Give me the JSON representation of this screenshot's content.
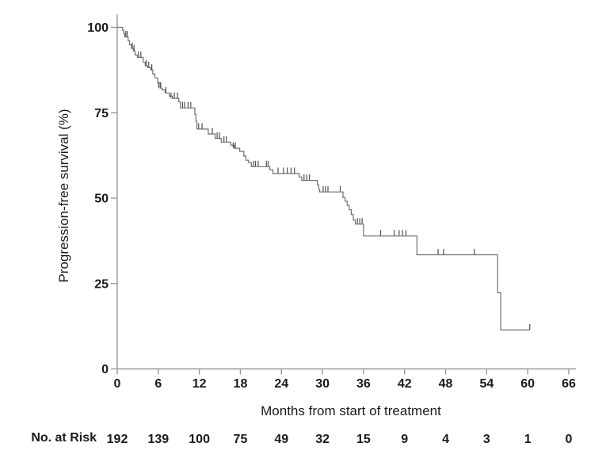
{
  "chart_data": {
    "type": "line",
    "subtype": "kaplan-meier-step-curve",
    "title": "",
    "xlabel": "Months from start of treatment",
    "ylabel": "Progression-free survival (%)",
    "x_ticks": [
      0,
      6,
      12,
      18,
      24,
      30,
      36,
      42,
      48,
      54,
      60,
      66
    ],
    "y_ticks": [
      0,
      25,
      50,
      75,
      100
    ],
    "xlim": [
      0,
      66
    ],
    "ylim": [
      0,
      100
    ],
    "grid": false,
    "legend": null,
    "colors": {
      "curve": "#6f6f6f",
      "censor": "#4f4f4f",
      "axis": "#9a9a9a",
      "text": "#1a1a1a"
    },
    "steps": [
      [
        0,
        100
      ],
      [
        0.8,
        99.1
      ],
      [
        0.95,
        98.1
      ],
      [
        1.1,
        97.2
      ],
      [
        1.6,
        96.1
      ],
      [
        1.8,
        94.9
      ],
      [
        2.1,
        93.8
      ],
      [
        2.35,
        93.1
      ],
      [
        2.6,
        91.9
      ],
      [
        2.95,
        91.2
      ],
      [
        3.8,
        89.8
      ],
      [
        4.1,
        88.7
      ],
      [
        4.45,
        88.2
      ],
      [
        4.9,
        87.5
      ],
      [
        5.2,
        86.3
      ],
      [
        5.5,
        85.2
      ],
      [
        5.9,
        83.8
      ],
      [
        6.25,
        82.2
      ],
      [
        6.55,
        81.7
      ],
      [
        7.0,
        80.8
      ],
      [
        7.6,
        79.9
      ],
      [
        8.05,
        79.2
      ],
      [
        9.0,
        78.2
      ],
      [
        9.25,
        76.4
      ],
      [
        11.35,
        74.5
      ],
      [
        11.5,
        72.5
      ],
      [
        11.65,
        70.2
      ],
      [
        13.3,
        68.8
      ],
      [
        14.3,
        67.5
      ],
      [
        15.2,
        66.4
      ],
      [
        16.6,
        65.5
      ],
      [
        17.1,
        64.6
      ],
      [
        17.9,
        63.7
      ],
      [
        18.5,
        62.3
      ],
      [
        18.8,
        61.1
      ],
      [
        19.2,
        60.4
      ],
      [
        19.6,
        59.2
      ],
      [
        22.3,
        58.3
      ],
      [
        22.75,
        57.2
      ],
      [
        26.6,
        56.2
      ],
      [
        26.95,
        55.2
      ],
      [
        29.25,
        53.9
      ],
      [
        29.45,
        52.6
      ],
      [
        29.6,
        51.8
      ],
      [
        33.0,
        50.2
      ],
      [
        33.3,
        49.1
      ],
      [
        33.6,
        47.9
      ],
      [
        33.9,
        46.6
      ],
      [
        34.2,
        45.2
      ],
      [
        34.5,
        43.6
      ],
      [
        34.8,
        42.4
      ],
      [
        36.0,
        38.9
      ],
      [
        43.8,
        33.4
      ],
      [
        55.6,
        22.3
      ],
      [
        56.05,
        11.4
      ]
    ],
    "curve_end_month": 60.3,
    "censor_marks": [
      [
        1.25,
        97.2
      ],
      [
        1.45,
        97.2
      ],
      [
        2.2,
        93.8
      ],
      [
        2.45,
        93.1
      ],
      [
        3.1,
        91.2
      ],
      [
        3.45,
        91.2
      ],
      [
        4.25,
        88.7
      ],
      [
        4.6,
        88.2
      ],
      [
        5.05,
        87.5
      ],
      [
        6.05,
        82.2
      ],
      [
        6.35,
        82.2
      ],
      [
        7.1,
        80.8
      ],
      [
        7.85,
        79.2
      ],
      [
        8.35,
        79.2
      ],
      [
        8.8,
        79.2
      ],
      [
        9.55,
        76.4
      ],
      [
        9.85,
        76.4
      ],
      [
        10.35,
        76.4
      ],
      [
        10.75,
        76.4
      ],
      [
        11.9,
        70.2
      ],
      [
        12.4,
        70.2
      ],
      [
        13.9,
        68.8
      ],
      [
        14.6,
        67.5
      ],
      [
        14.95,
        67.5
      ],
      [
        15.6,
        66.4
      ],
      [
        15.95,
        66.4
      ],
      [
        16.95,
        64.6
      ],
      [
        17.25,
        64.6
      ],
      [
        19.9,
        59.2
      ],
      [
        20.2,
        59.2
      ],
      [
        20.6,
        59.2
      ],
      [
        21.8,
        59.2
      ],
      [
        22.05,
        59.2
      ],
      [
        23.5,
        57.2
      ],
      [
        24.3,
        57.2
      ],
      [
        24.85,
        57.2
      ],
      [
        25.4,
        57.2
      ],
      [
        25.9,
        57.2
      ],
      [
        27.3,
        55.2
      ],
      [
        27.7,
        55.2
      ],
      [
        28.1,
        55.2
      ],
      [
        30.1,
        51.8
      ],
      [
        30.45,
        51.8
      ],
      [
        30.8,
        51.8
      ],
      [
        32.6,
        51.8
      ],
      [
        35.1,
        42.4
      ],
      [
        35.45,
        42.4
      ],
      [
        35.8,
        42.4
      ],
      [
        38.5,
        38.9
      ],
      [
        40.5,
        38.9
      ],
      [
        41.2,
        38.9
      ],
      [
        41.7,
        38.9
      ],
      [
        42.2,
        38.9
      ],
      [
        46.9,
        33.4
      ],
      [
        47.7,
        33.4
      ],
      [
        52.2,
        33.4
      ],
      [
        60.3,
        11.4
      ]
    ],
    "at_risk": {
      "label": "No. at Risk",
      "times": [
        0,
        6,
        12,
        18,
        24,
        30,
        36,
        42,
        48,
        54,
        60,
        66
      ],
      "counts": [
        192,
        139,
        100,
        75,
        49,
        32,
        15,
        9,
        4,
        3,
        1,
        0
      ]
    }
  }
}
